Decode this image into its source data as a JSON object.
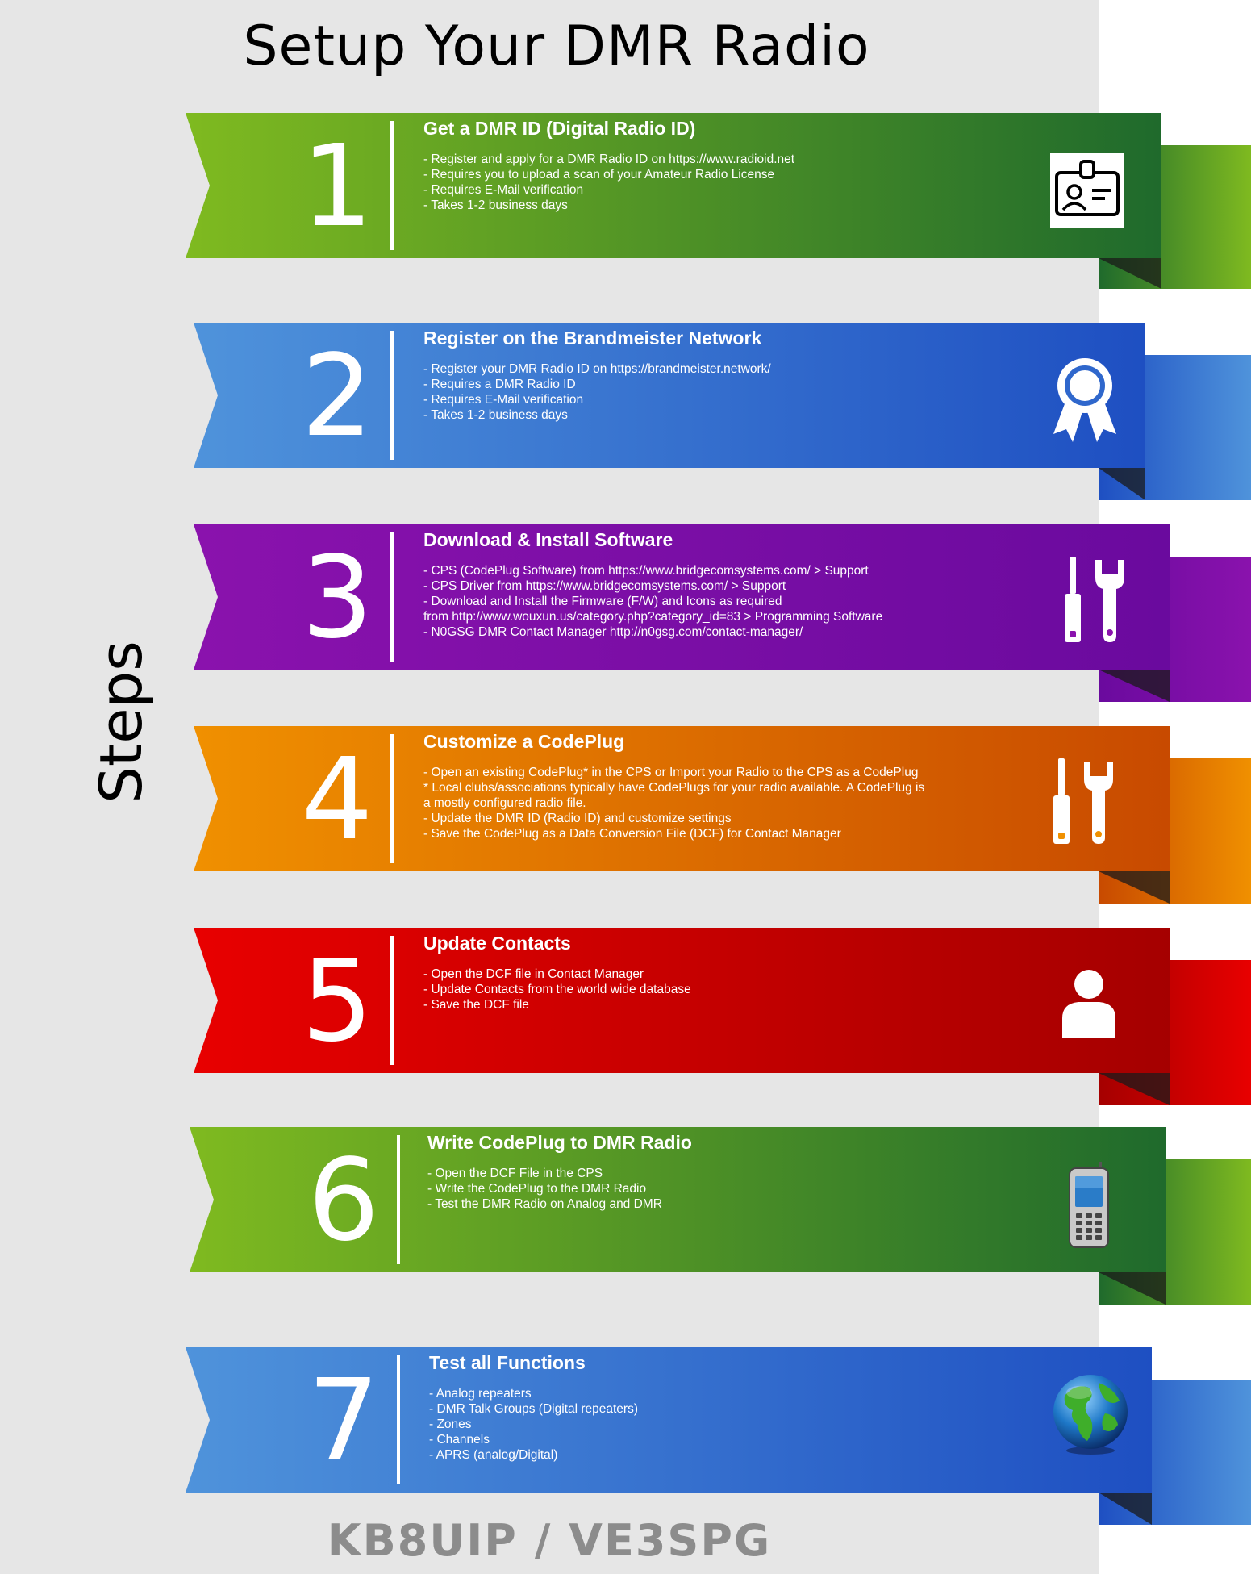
{
  "title": "Setup Your DMR Radio",
  "side_label": "Steps",
  "footer": "KB8UIP / VE3SPG",
  "colors": {
    "green": [
      "#7fba20",
      "#1f6a2c"
    ],
    "blue": [
      "#4f93db",
      "#1e4fc2"
    ],
    "purple": [
      "#8a12ad",
      "#6a0a9e"
    ],
    "orange": [
      "#f09000",
      "#c84a00"
    ],
    "red": [
      "#e80000",
      "#a50000"
    ]
  },
  "steps": [
    {
      "number": "1",
      "heading": "Get a DMR ID (Digital Radio ID)",
      "lines": [
        "- Register and apply for a DMR Radio ID on https://www.radioid.net",
        "- Requires you to upload a scan of your Amateur Radio License",
        "- Requires E-Mail verification",
        "- Takes 1-2 business days"
      ],
      "icon": "id-card-icon"
    },
    {
      "number": "2",
      "heading": "Register on the Brandmeister Network",
      "lines": [
        "- Register your DMR Radio ID on https://brandmeister.network/",
        "- Requires a DMR Radio ID",
        "- Requires E-Mail verification",
        "- Takes 1-2 business days"
      ],
      "icon": "award-ribbon-icon"
    },
    {
      "number": "3",
      "heading": "Download & Install Software",
      "lines": [
        "- CPS (CodePlug Software) from https://www.bridgecomsystems.com/ > Support",
        "- CPS Driver from https://www.bridgecomsystems.com/ > Support",
        "- Download and Install the Firmware (F/W) and Icons as required",
        "from http://www.wouxun.us/category.php?category_id=83 > Programming Software",
        "- N0GSG DMR Contact Manager http://n0gsg.com/contact-manager/"
      ],
      "icon": "tools-icon"
    },
    {
      "number": "4",
      "heading": "Customize a CodePlug",
      "lines": [
        "- Open an existing CodePlug* in the CPS or Import your Radio to the CPS as a CodePlug",
        "* Local clubs/associations typically have CodePlugs for your radio available.  A CodePlug is",
        "a mostly configured radio file.",
        "- Update the DMR ID (Radio ID) and customize settings",
        "- Save the CodePlug as a Data Conversion File (DCF) for Contact Manager"
      ],
      "icon": "tools-icon"
    },
    {
      "number": "5",
      "heading": "Update Contacts",
      "lines": [
        "- Open the DCF file in Contact Manager",
        "- Update Contacts from the world wide database",
        "- Save the DCF file"
      ],
      "icon": "person-icon"
    },
    {
      "number": "6",
      "heading": "Write CodePlug to DMR Radio",
      "lines": [
        "- Open the DCF File in the CPS",
        "- Write the CodePlug to the DMR Radio",
        "- Test the DMR Radio on Analog and DMR"
      ],
      "icon": "mobile-phone-icon"
    },
    {
      "number": "7",
      "heading": "Test all Functions",
      "lines": [
        "- Analog repeaters",
        "- DMR Talk Groups (Digital repeaters)",
        "- Zones",
        "- Channels",
        "- APRS (analog/Digital)"
      ],
      "icon": "globe-icon"
    }
  ]
}
